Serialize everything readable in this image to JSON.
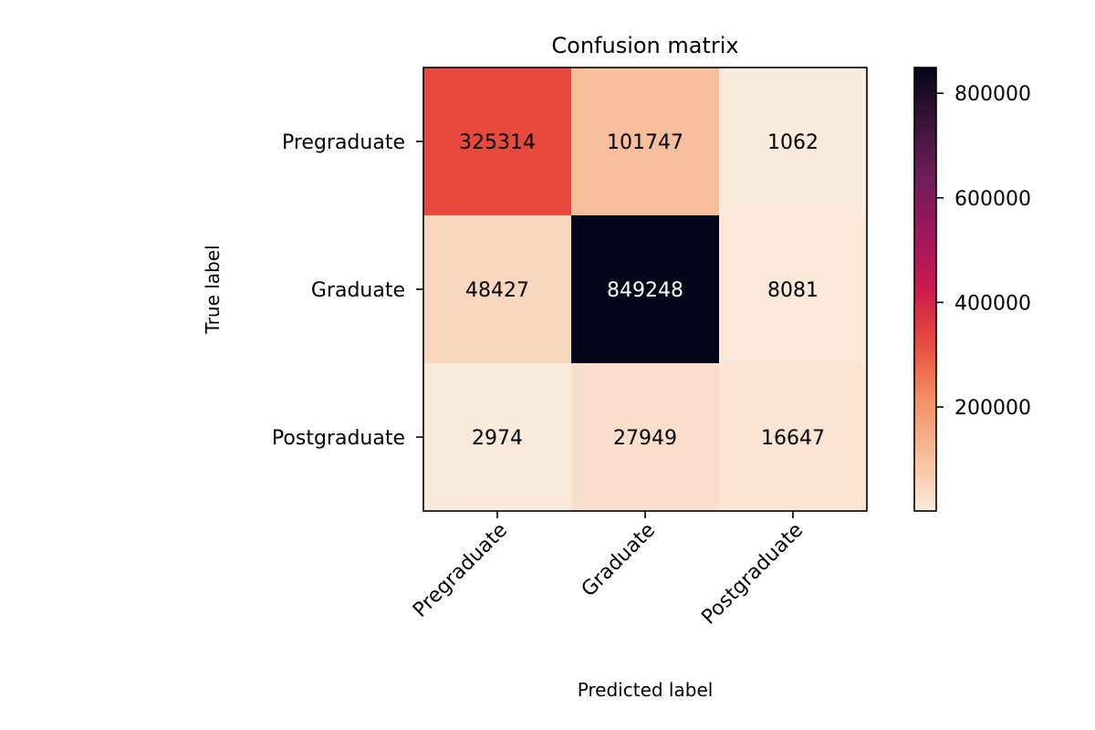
{
  "chart_data": {
    "type": "heatmap",
    "title": "Confusion matrix",
    "xlabel": "Predicted label",
    "ylabel": "True label",
    "x_categories": [
      "Pregraduate",
      "Graduate",
      "Postgraduate"
    ],
    "y_categories": [
      "Pregraduate",
      "Graduate",
      "Postgraduate"
    ],
    "values": [
      [
        325314,
        101747,
        1062
      ],
      [
        48427,
        849248,
        8081
      ],
      [
        2974,
        27949,
        16647
      ]
    ],
    "colorbar": {
      "ticks": [
        200000,
        400000,
        600000,
        800000
      ],
      "range": [
        1062,
        849248
      ],
      "colormap": "rocket_r"
    },
    "grid": false
  }
}
